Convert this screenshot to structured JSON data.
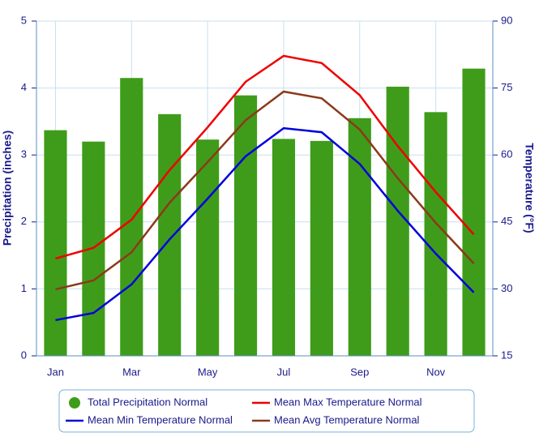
{
  "chart_data": {
    "type": "bar_line",
    "y_label": "Precipitation (inches)",
    "y2_label": "Temperature (°F)",
    "categories": [
      "Jan",
      null,
      "Mar",
      null,
      "May",
      null,
      "Jul",
      null,
      "Sep",
      null,
      "Nov",
      null
    ],
    "ylim": [
      0,
      5
    ],
    "yticks": [
      0,
      1,
      2,
      3,
      4,
      5
    ],
    "y2lim": [
      15,
      90
    ],
    "y2ticks": [
      15,
      30,
      45,
      60,
      75,
      90
    ],
    "grid": true,
    "legend": "bottom",
    "series": [
      {
        "name": "Total Precipitation Normal",
        "type": "bar",
        "color": "#3f9c1a",
        "values": [
          3.37,
          3.2,
          4.15,
          3.61,
          3.23,
          3.89,
          3.24,
          3.21,
          3.55,
          4.02,
          3.64,
          4.29
        ]
      },
      {
        "name": "Mean Max Temperature Normal",
        "type": "line",
        "axis": "y2",
        "color": "#ee0000",
        "values": [
          36.8,
          39.2,
          45.5,
          56.6,
          66.2,
          76.4,
          82.2,
          80.6,
          73.4,
          62.0,
          51.7,
          42.2
        ]
      },
      {
        "name": "Mean Min Temperature Normal",
        "type": "line",
        "axis": "y2",
        "color": "#0000dd",
        "values": [
          23.0,
          24.6,
          31.0,
          41.1,
          50.2,
          59.7,
          66.0,
          65.1,
          58.0,
          47.5,
          37.9,
          29.2
        ]
      },
      {
        "name": "Mean Avg Temperature Normal",
        "type": "line",
        "axis": "y2",
        "color": "#8b3a1a",
        "values": [
          29.9,
          31.9,
          38.2,
          49.3,
          58.4,
          67.8,
          74.2,
          72.7,
          65.7,
          54.8,
          44.8,
          35.7
        ]
      }
    ]
  }
}
